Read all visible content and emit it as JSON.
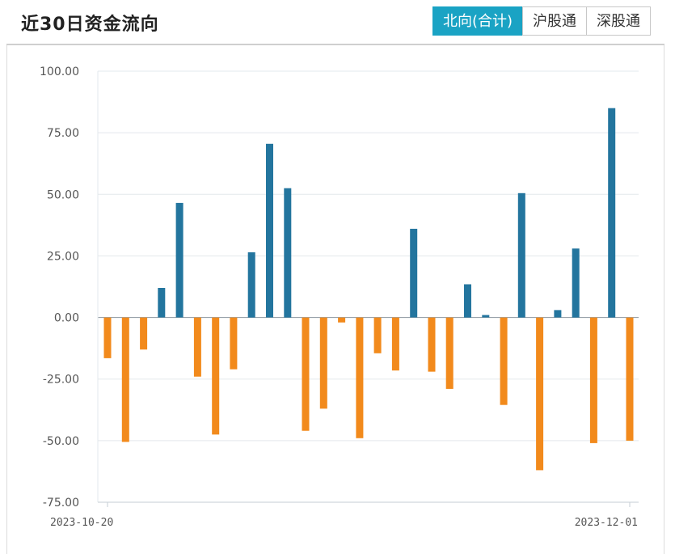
{
  "header": {
    "title": "近30日资金流向",
    "tabs": [
      {
        "label": "北向(合计)",
        "active": true
      },
      {
        "label": "沪股通",
        "active": false
      },
      {
        "label": "深股通",
        "active": false
      }
    ]
  },
  "colors": {
    "positive": "#23759e",
    "negative": "#f28a1c",
    "tab_active": "#1aa3c4"
  },
  "chart_data": {
    "type": "bar",
    "title": "",
    "xlabel": "",
    "ylabel": "",
    "ylim": [
      -75,
      100
    ],
    "yticks": [
      "100.00",
      "75.00",
      "50.00",
      "25.00",
      "0.00",
      "-25.00",
      "-50.00",
      "-75.00"
    ],
    "ytick_values": [
      100,
      75,
      50,
      25,
      0,
      -25,
      -50,
      -75
    ],
    "x_start_label": "2023-10-20",
    "x_end_label": "2023-12-01",
    "grid": true,
    "values": [
      -16.5,
      -50.5,
      -13,
      12,
      46.5,
      -24,
      -47.5,
      -21,
      26.5,
      70.5,
      52.5,
      -46,
      -37,
      -2,
      -49,
      -14.5,
      -21.5,
      36,
      -22,
      -29,
      13.5,
      1,
      -35.5,
      50.5,
      -62,
      3,
      28,
      -51,
      85,
      -50
    ]
  }
}
